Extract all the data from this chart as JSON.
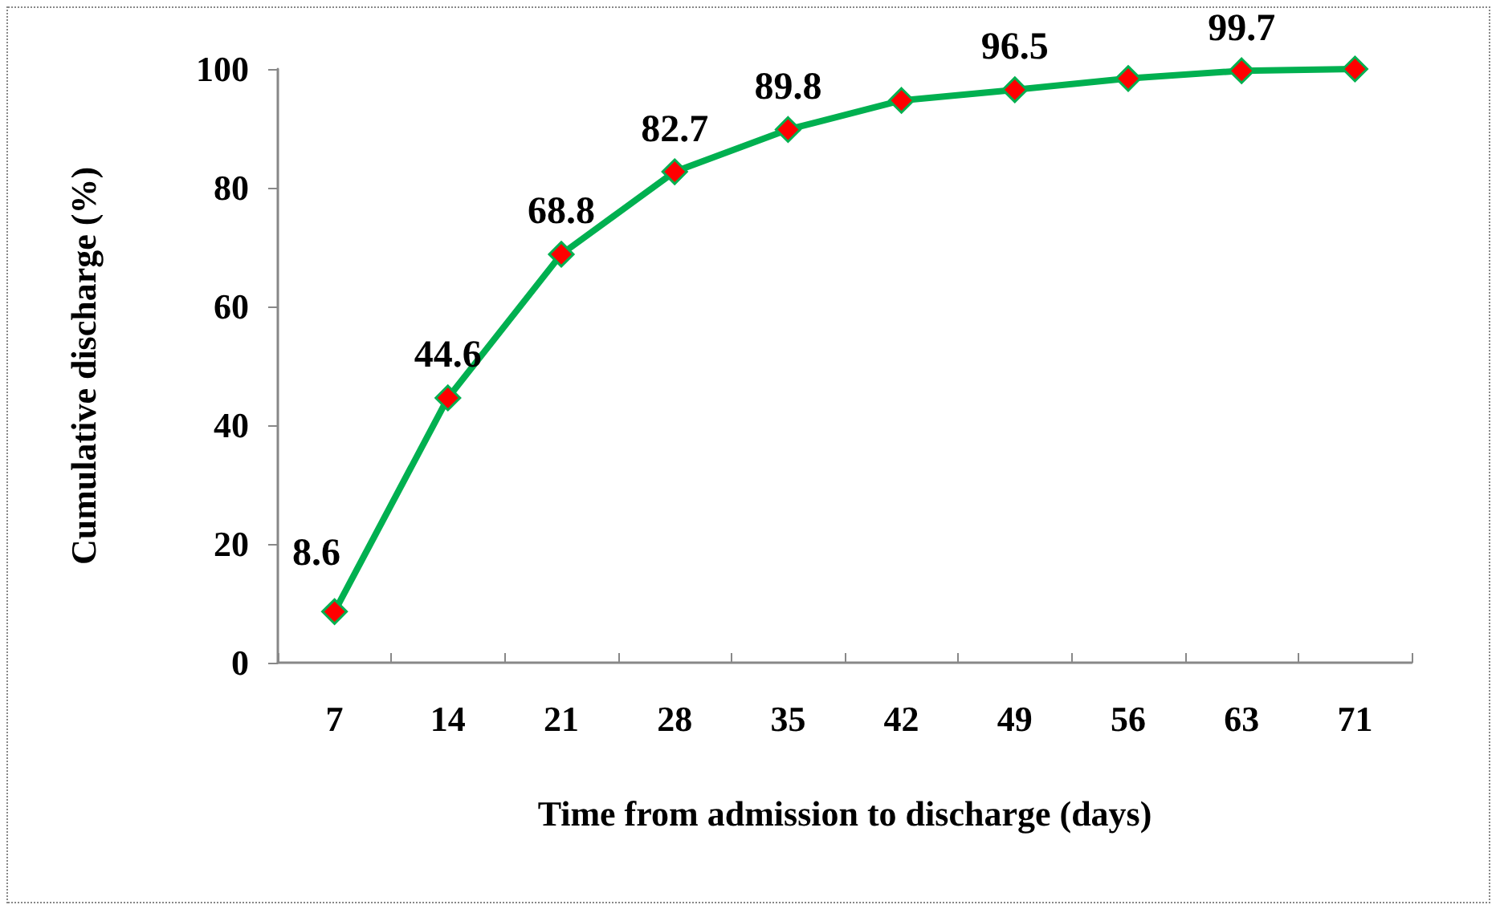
{
  "chart_data": {
    "type": "line",
    "xlabel": "Time from admission to discharge (days)",
    "ylabel": "Cumulative discharge (%)",
    "categories": [
      "7",
      "14",
      "21",
      "28",
      "35",
      "42",
      "49",
      "56",
      "63",
      "71"
    ],
    "series": [
      {
        "color": "#00b050",
        "colors": [
          "#ff0000",
          "#ff0000",
          "#ff0000",
          "#ff0000",
          "#ff0000",
          "#ff0000",
          "#ff0000",
          "#ff0000",
          "#ff0000",
          "#ff0000"
        ],
        "values": [
          8.6,
          44.6,
          68.8,
          82.7,
          89.8,
          94.7,
          96.5,
          98.4,
          99.7,
          100
        ],
        "value_labels": [
          "8.6",
          "44.6",
          "68.8",
          "82.7",
          "89.8",
          null,
          "96.5",
          null,
          "99.7",
          null
        ]
      }
    ],
    "ylim": [
      0,
      100
    ],
    "yticks": [
      0,
      20,
      40,
      60,
      80,
      100
    ],
    "grid": false,
    "marker": "diamond",
    "line_style": "solid"
  }
}
